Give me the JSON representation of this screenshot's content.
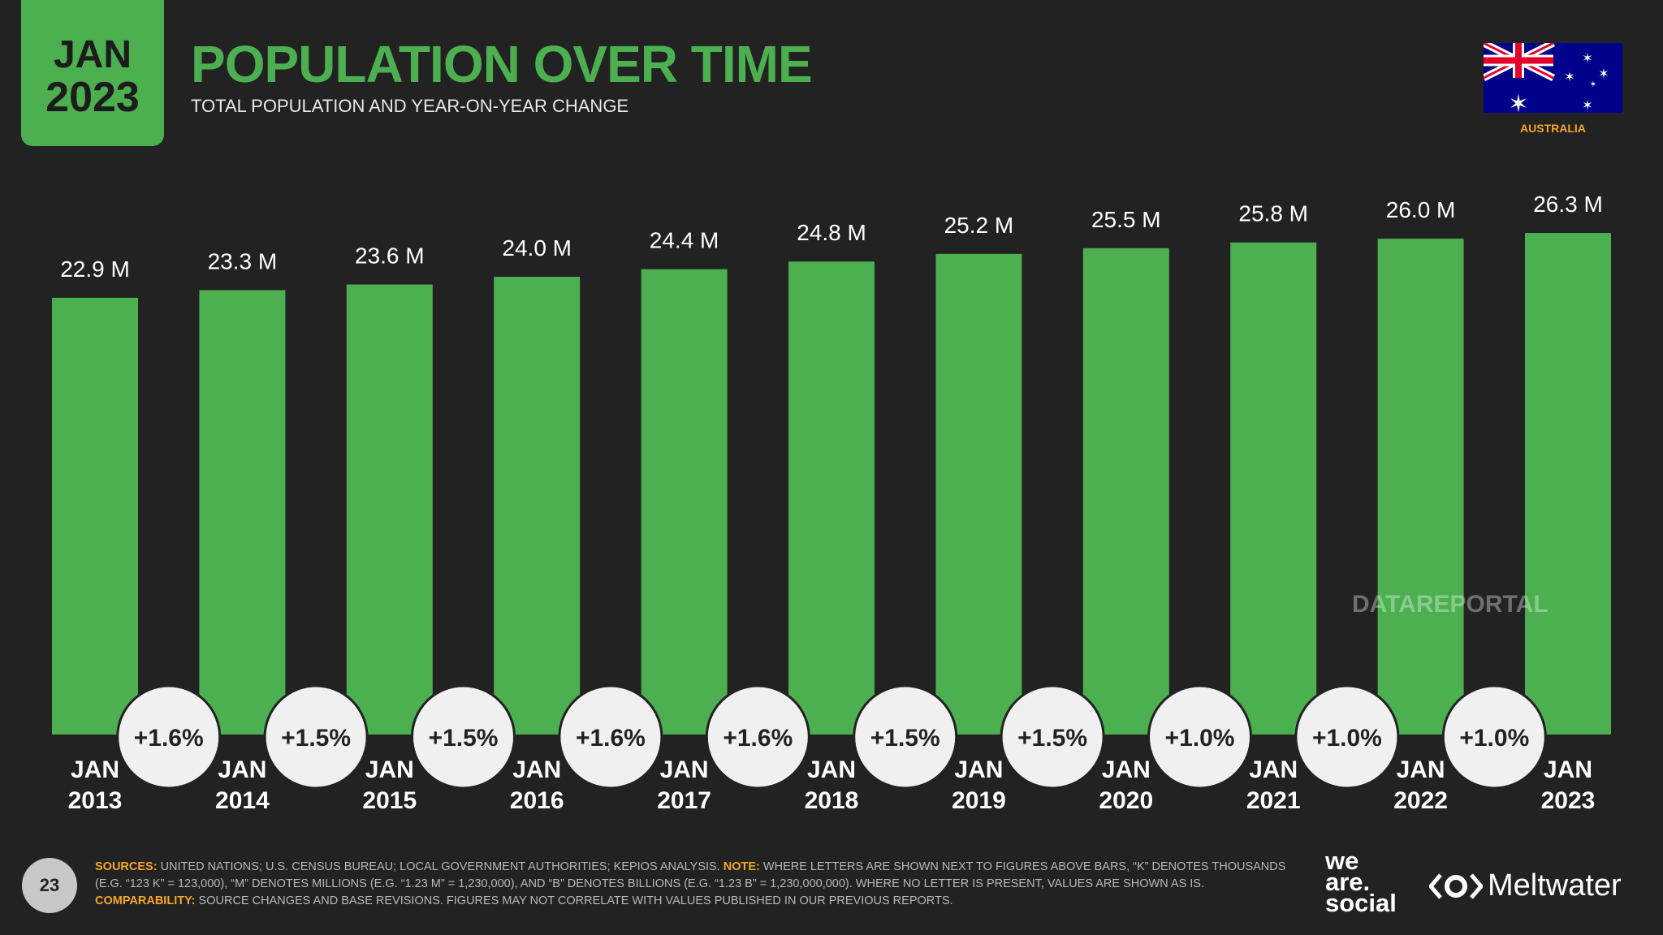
{
  "header": {
    "date_month": "JAN",
    "date_year": "2023",
    "title": "POPULATION OVER TIME",
    "subtitle": "TOTAL POPULATION AND YEAR-ON-YEAR CHANGE",
    "country": "AUSTRALIA",
    "flag_icon": "australia-flag"
  },
  "chart_data": {
    "type": "bar",
    "categories": [
      [
        "JAN",
        "2013"
      ],
      [
        "JAN",
        "2014"
      ],
      [
        "JAN",
        "2015"
      ],
      [
        "JAN",
        "2016"
      ],
      [
        "JAN",
        "2017"
      ],
      [
        "JAN",
        "2018"
      ],
      [
        "JAN",
        "2019"
      ],
      [
        "JAN",
        "2020"
      ],
      [
        "JAN",
        "2021"
      ],
      [
        "JAN",
        "2022"
      ],
      [
        "JAN",
        "2023"
      ]
    ],
    "values": [
      22.9,
      23.3,
      23.6,
      24.0,
      24.4,
      24.8,
      25.2,
      25.5,
      25.8,
      26.0,
      26.3
    ],
    "value_labels": [
      "22.9 M",
      "23.3 M",
      "23.6 M",
      "24.0 M",
      "24.4 M",
      "24.8 M",
      "25.2 M",
      "25.5 M",
      "25.8 M",
      "26.0 M",
      "26.3 M"
    ],
    "yoy_change": [
      "+1.6%",
      "+1.5%",
      "+1.5%",
      "+1.6%",
      "+1.6%",
      "+1.5%",
      "+1.5%",
      "+1.0%",
      "+1.0%",
      "+1.0%"
    ],
    "unit": "M",
    "ylim": [
      0,
      26.3
    ],
    "grid": false,
    "colors": {
      "bar": "#4caf50",
      "bubble": "#f0f0f0",
      "bubble_text": "#222222"
    }
  },
  "watermark": "DATAREPORTAL",
  "footer": {
    "page": "23",
    "sources_label": "SOURCES:",
    "sources": "UNITED NATIONS; U.S. CENSUS BUREAU; LOCAL GOVERNMENT AUTHORITIES; KEPIOS ANALYSIS.",
    "note_label": "NOTE:",
    "note": "WHERE LETTERS ARE SHOWN NEXT TO FIGURES ABOVE BARS, “K” DENOTES THOUSANDS (E.G. “123 K” = 123,000), “M” DENOTES MILLIONS (E.G. “1.23 M” = 1,230,000), AND “B” DENOTES BILLIONS (E.G. “1.23 B” = 1,230,000,000). WHERE NO LETTER IS PRESENT, VALUES ARE SHOWN AS IS.",
    "comparability_label": "COMPARABILITY:",
    "comparability": "SOURCE CHANGES AND BASE REVISIONS. FIGURES MAY NOT CORRELATE WITH VALUES PUBLISHED IN OUR PREVIOUS REPORTS."
  },
  "logos": {
    "we_are_social": [
      "we",
      "are.",
      "social"
    ],
    "meltwater": "Meltwater"
  }
}
